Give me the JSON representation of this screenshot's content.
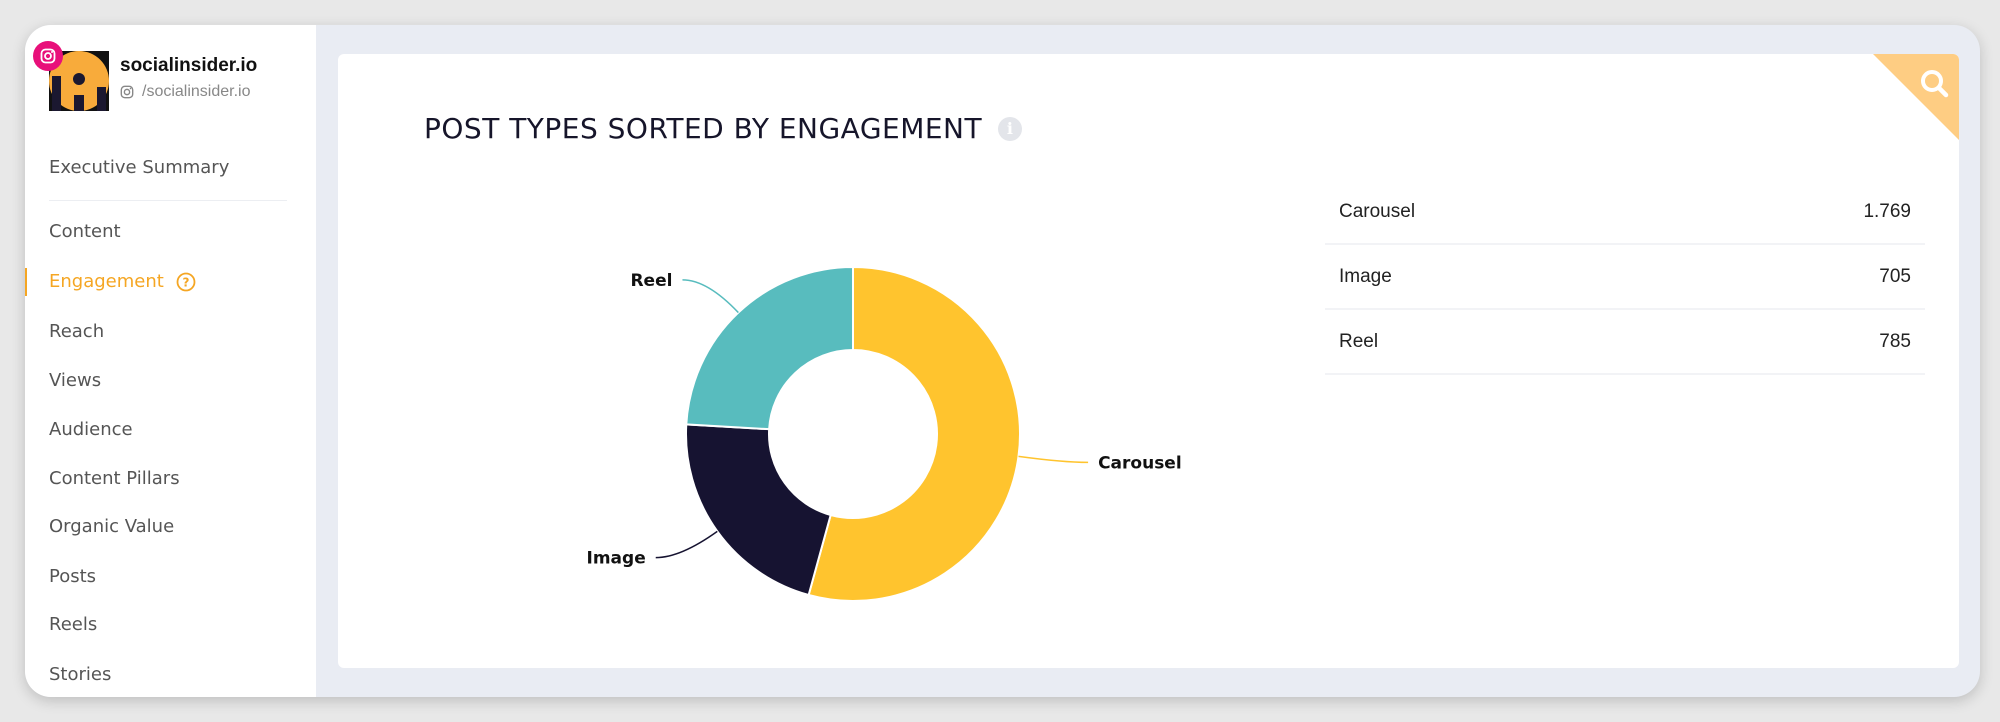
{
  "profile": {
    "name": "socialinsider.io",
    "handle": "/socialinsider.io",
    "network_icon": "instagram-icon",
    "badge_color": "#e8107a"
  },
  "sidebar": {
    "items": [
      {
        "label": "Executive Summary"
      },
      {
        "label": "Content"
      },
      {
        "label": "Engagement",
        "active": true,
        "help_icon": "question-circle-icon"
      },
      {
        "label": "Reach"
      },
      {
        "label": "Views"
      },
      {
        "label": "Audience"
      },
      {
        "label": "Content Pillars"
      },
      {
        "label": "Organic Value"
      },
      {
        "label": "Posts"
      },
      {
        "label": "Reels"
      },
      {
        "label": "Stories"
      }
    ],
    "accent": "#f5a623"
  },
  "card": {
    "title": "POST TYPES SORTED BY ENGAGEMENT",
    "info_icon": "info-icon",
    "corner_icon": "search-icon"
  },
  "chart_data": {
    "type": "pie",
    "donut": true,
    "categories": [
      "Carousel",
      "Image",
      "Reel"
    ],
    "values": [
      1769,
      705,
      785
    ],
    "value_labels": [
      "1.769",
      "705",
      "785"
    ],
    "colors": [
      "#ffc42e",
      "#161331",
      "#58bcbe"
    ],
    "legend": "table-right"
  }
}
